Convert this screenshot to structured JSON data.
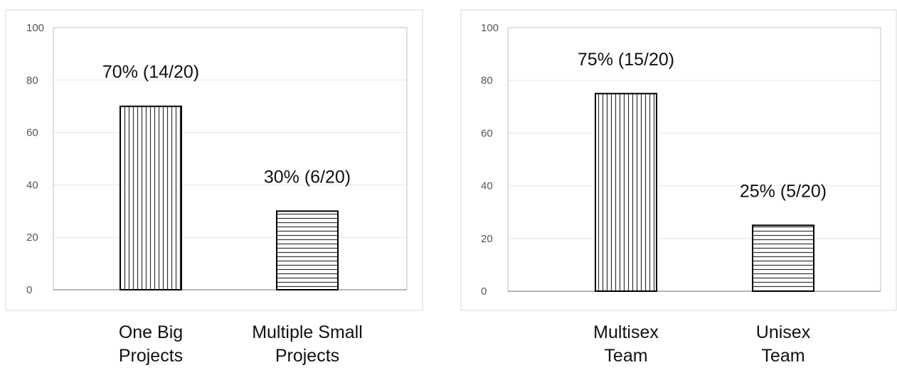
{
  "chart_data": [
    {
      "type": "bar",
      "categories": [
        "One Big\nProjects",
        "Multiple Small\nProjects"
      ],
      "values": [
        70,
        30
      ],
      "data_labels": [
        "70% (14/20)",
        "30% (6/20)"
      ],
      "patterns": [
        "vertical-hatch",
        "horizontal-hatch"
      ],
      "ylim": [
        0,
        100
      ],
      "yticks": [
        0,
        20,
        40,
        60,
        80,
        100
      ],
      "grid": true
    },
    {
      "type": "bar",
      "categories": [
        "Multisex\nTeam",
        "Unisex\nTeam"
      ],
      "values": [
        75,
        25
      ],
      "data_labels": [
        "75% (15/20)",
        "25% (5/20)"
      ],
      "patterns": [
        "vertical-hatch",
        "horizontal-hatch"
      ],
      "ylim": [
        0,
        100
      ],
      "yticks": [
        0,
        20,
        40,
        60,
        80,
        100
      ],
      "grid": true
    }
  ],
  "colors": {
    "bar_fill": "#ffffff",
    "bar_stroke": "#000000",
    "hatch": "#333333",
    "gridline": "#e6e6e6",
    "frame": "#bfbfbf",
    "panel_border": "#d9d9d9"
  }
}
